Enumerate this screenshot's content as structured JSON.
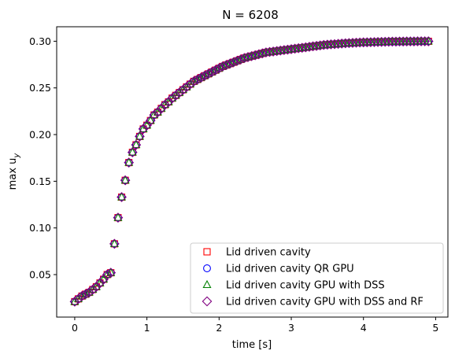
{
  "chart_data": {
    "type": "scatter",
    "title": "N = 6208",
    "xlabel": "time [s]",
    "ylabel_main": "max u",
    "ylabel_sub": "y",
    "xlim": [
      -0.25,
      5.17
    ],
    "ylim": [
      0.0045,
      0.3155
    ],
    "xticks": [
      0,
      1,
      2,
      3,
      4,
      5
    ],
    "xtick_labels": [
      "0",
      "1",
      "2",
      "3",
      "4",
      "5"
    ],
    "yticks": [
      0.05,
      0.1,
      0.15,
      0.2,
      0.25,
      0.3
    ],
    "ytick_labels": [
      "0.05",
      "0.10",
      "0.15",
      "0.20",
      "0.25",
      "0.30"
    ],
    "grid": false,
    "legend_position": "lower-right",
    "x": [
      0.0,
      0.05,
      0.1,
      0.15,
      0.2,
      0.25,
      0.3,
      0.35,
      0.4,
      0.45,
      0.5,
      0.55,
      0.6,
      0.65,
      0.7,
      0.75,
      0.8,
      0.85,
      0.9,
      0.95,
      1.0,
      1.05,
      1.1,
      1.15,
      1.2,
      1.25,
      1.3,
      1.35,
      1.4,
      1.45,
      1.5,
      1.55,
      1.6,
      1.65,
      1.7,
      1.75,
      1.8,
      1.85,
      1.9,
      1.95,
      2.0,
      2.05,
      2.1,
      2.15,
      2.2,
      2.25,
      2.3,
      2.35,
      2.4,
      2.45,
      2.5,
      2.55,
      2.6,
      2.65,
      2.7,
      2.75,
      2.8,
      2.85,
      2.9,
      2.95,
      3.0,
      3.05,
      3.1,
      3.15,
      3.2,
      3.25,
      3.3,
      3.35,
      3.4,
      3.45,
      3.5,
      3.55,
      3.6,
      3.65,
      3.7,
      3.75,
      3.8,
      3.85,
      3.9,
      3.95,
      4.0,
      4.05,
      4.1,
      4.15,
      4.2,
      4.25,
      4.3,
      4.35,
      4.4,
      4.45,
      4.5,
      4.55,
      4.6,
      4.65,
      4.7,
      4.75,
      4.8,
      4.85,
      4.9
    ],
    "y": [
      0.021,
      0.024,
      0.027,
      0.029,
      0.031,
      0.034,
      0.037,
      0.041,
      0.045,
      0.05,
      0.052,
      0.083,
      0.111,
      0.133,
      0.151,
      0.17,
      0.181,
      0.189,
      0.198,
      0.206,
      0.21,
      0.215,
      0.221,
      0.224,
      0.228,
      0.232,
      0.235,
      0.239,
      0.242,
      0.245,
      0.248,
      0.251,
      0.254,
      0.257,
      0.259,
      0.261,
      0.263,
      0.265,
      0.267,
      0.269,
      0.271,
      0.273,
      0.2745,
      0.276,
      0.2775,
      0.279,
      0.2805,
      0.282,
      0.283,
      0.284,
      0.285,
      0.286,
      0.287,
      0.288,
      0.2885,
      0.289,
      0.2895,
      0.29,
      0.2905,
      0.291,
      0.2915,
      0.292,
      0.2925,
      0.293,
      0.2935,
      0.294,
      0.2945,
      0.295,
      0.2955,
      0.296,
      0.2963,
      0.2966,
      0.2969,
      0.2972,
      0.2975,
      0.2978,
      0.298,
      0.2982,
      0.2984,
      0.2986,
      0.2988,
      0.2989,
      0.299,
      0.2991,
      0.2992,
      0.2993,
      0.2994,
      0.2995,
      0.2996,
      0.2996,
      0.2997,
      0.2997,
      0.2998,
      0.2998,
      0.2998,
      0.2999,
      0.2999,
      0.2999,
      0.2999
    ],
    "series": [
      {
        "name": "Lid driven cavity",
        "marker": "square",
        "color": "#ff0000"
      },
      {
        "name": "Lid driven cavity QR GPU",
        "marker": "circle",
        "color": "#0000ff"
      },
      {
        "name": "Lid driven cavity GPU with DSS",
        "marker": "triangle",
        "color": "#008000"
      },
      {
        "name": "Lid driven cavity GPU with DSS and RF",
        "marker": "diamond",
        "color": "#800080"
      }
    ]
  }
}
